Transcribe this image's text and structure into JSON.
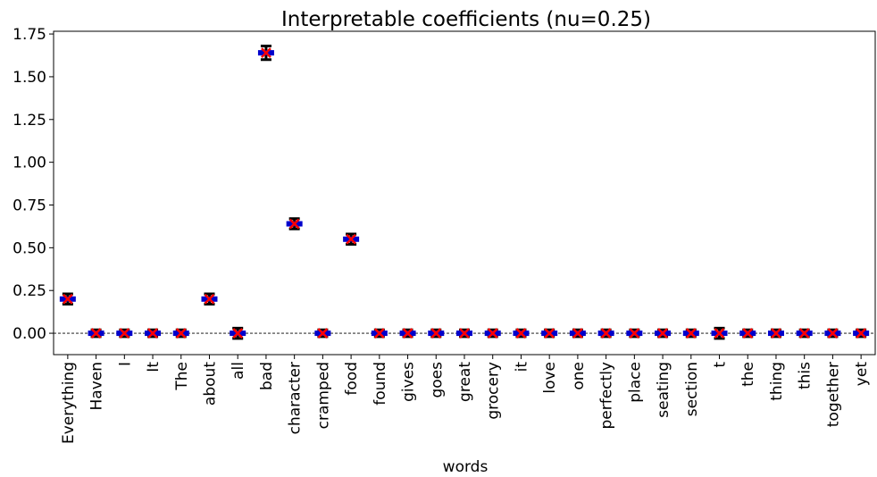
{
  "chart_data": {
    "type": "errorbar",
    "title": "Interpretable coefficients (nu=0.25)",
    "x_label": "words",
    "categories": [
      "Everything",
      "Haven",
      "I",
      "It",
      "The",
      "about",
      "all",
      "bad",
      "character",
      "cramped",
      "food",
      "found",
      "gives",
      "goes",
      "great",
      "grocery",
      "it",
      "love",
      "one",
      "perfectly",
      "place",
      "seating",
      "section",
      "t",
      "the",
      "thing",
      "this",
      "together",
      "yet"
    ],
    "values": [
      0.2,
      0.0,
      0.0,
      0.0,
      0.0,
      0.2,
      0.0,
      1.64,
      0.64,
      0.0,
      0.55,
      0.0,
      0.0,
      0.0,
      0.0,
      0.0,
      0.0,
      0.0,
      0.0,
      0.0,
      0.0,
      0.0,
      0.0,
      0.0,
      0.0,
      0.0,
      0.0,
      0.0,
      0.0
    ],
    "errors": [
      0.03,
      0.02,
      0.02,
      0.02,
      0.02,
      0.03,
      0.03,
      0.04,
      0.03,
      0.02,
      0.03,
      0.02,
      0.02,
      0.02,
      0.02,
      0.02,
      0.02,
      0.02,
      0.02,
      0.02,
      0.02,
      0.02,
      0.02,
      0.03,
      0.02,
      0.02,
      0.02,
      0.02,
      0.02
    ],
    "box_color": "#0000cc",
    "marker_color": "#ff0000",
    "error_color": "#000000",
    "hline": 0,
    "ylim": [
      -0.125,
      1.766
    ],
    "yticks": [
      {
        "value": 0,
        "label": "0.00"
      },
      {
        "value": 0.25,
        "label": "0.25"
      },
      {
        "value": 0.5,
        "label": "0.50"
      },
      {
        "value": 0.75,
        "label": "0.75"
      },
      {
        "value": 1,
        "label": "1.00"
      },
      {
        "value": 1.25,
        "label": "1.25"
      },
      {
        "value": 1.5,
        "label": "1.50"
      },
      {
        "value": 1.75,
        "label": "1.75"
      }
    ]
  }
}
